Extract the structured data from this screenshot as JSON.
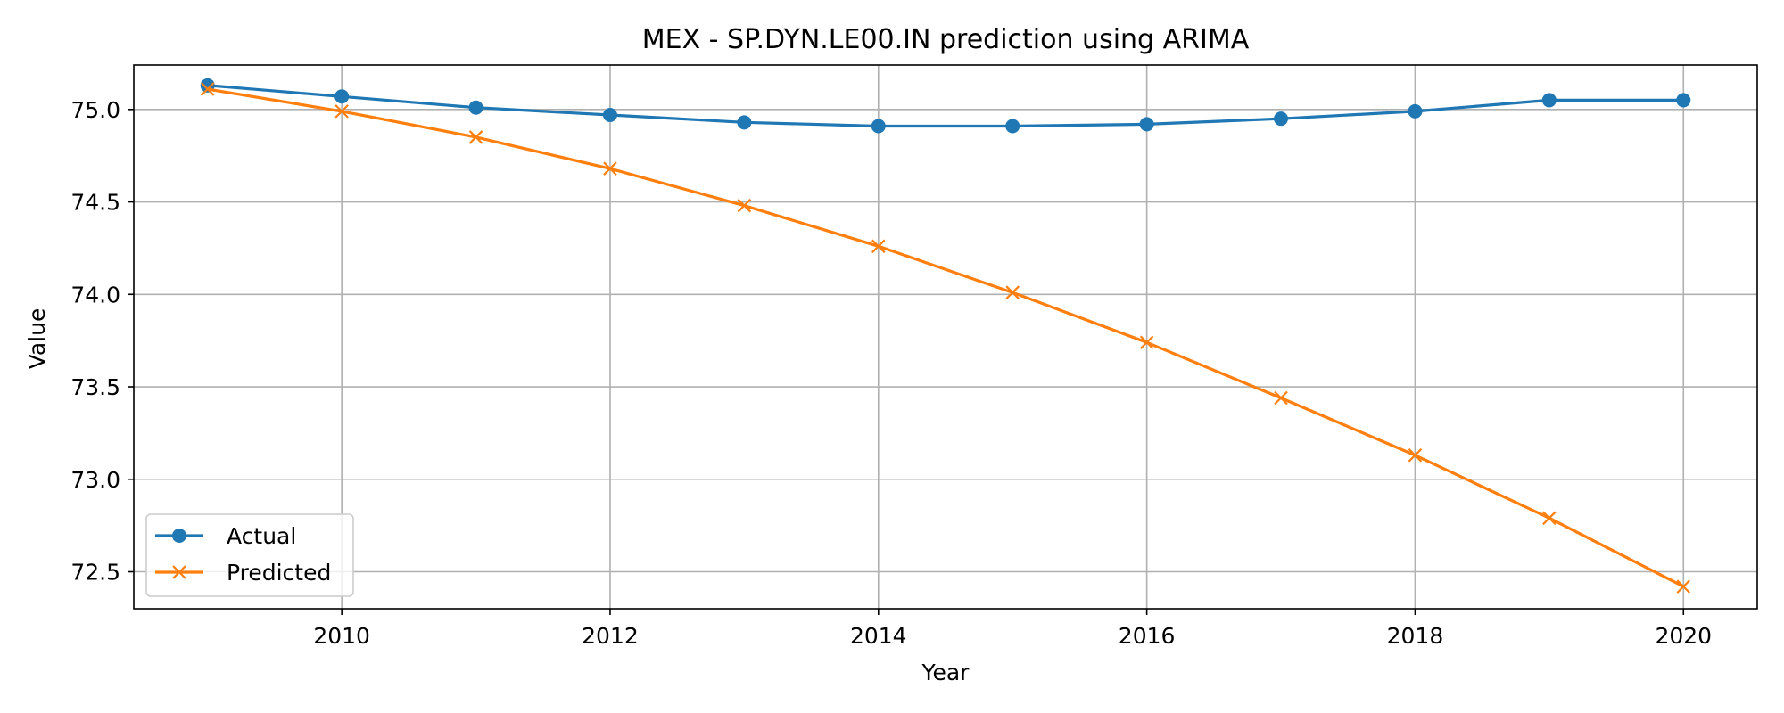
{
  "chart_data": {
    "type": "line",
    "title": "MEX - SP.DYN.LE00.IN prediction using ARIMA",
    "xlabel": "Year",
    "ylabel": "Value",
    "x": [
      2009,
      2010,
      2011,
      2012,
      2013,
      2014,
      2015,
      2016,
      2017,
      2018,
      2019,
      2020
    ],
    "xlim": [
      2008.45,
      2020.55
    ],
    "ylim": [
      72.3,
      75.24
    ],
    "xticks": [
      2010,
      2012,
      2014,
      2016,
      2018,
      2020
    ],
    "yticks": [
      72.5,
      73.0,
      73.5,
      74.0,
      74.5,
      75.0
    ],
    "ytick_labels": [
      "72.5",
      "73.0",
      "73.5",
      "74.0",
      "74.5",
      "75.0"
    ],
    "grid": true,
    "legend_position": "lower-left",
    "series": [
      {
        "name": "Actual",
        "color": "#1f77b4",
        "marker": "circle",
        "values": [
          75.13,
          75.07,
          75.01,
          74.97,
          74.93,
          74.91,
          74.91,
          74.92,
          74.95,
          74.99,
          75.05,
          75.05
        ]
      },
      {
        "name": "Predicted",
        "color": "#ff7f0e",
        "marker": "x",
        "values": [
          75.11,
          74.99,
          74.85,
          74.68,
          74.48,
          74.26,
          74.01,
          73.74,
          73.44,
          73.13,
          72.79,
          72.42
        ]
      }
    ]
  }
}
